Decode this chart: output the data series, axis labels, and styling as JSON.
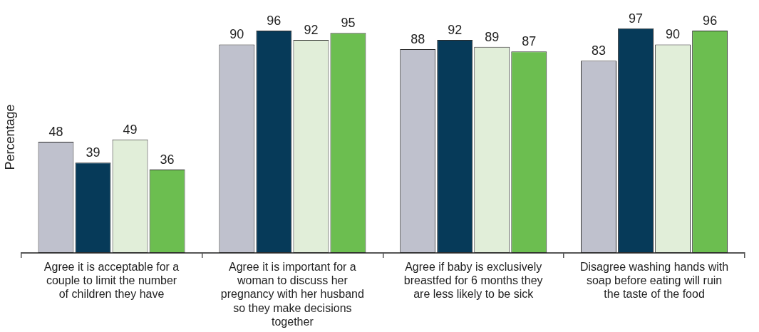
{
  "chart_data": {
    "type": "bar",
    "ylabel": "Percentage",
    "categories": [
      "Agree it is acceptable for a couple to limit the number of children they have",
      "Agree it is important for a woman to discuss her pregnancy with her husband so they make decisions together",
      "Agree if baby is exclusively breastfed for 6 months they are less likely to be sick",
      "Disagree washing hands with soap before eating will ruin the taste of the food"
    ],
    "series": [
      {
        "color": "#bfc1cd",
        "values": [
          48,
          90,
          88,
          83
        ]
      },
      {
        "color": "#063a59",
        "values": [
          39,
          96,
          92,
          97
        ]
      },
      {
        "color": "#e1eed9",
        "values": [
          49,
          92,
          89,
          90
        ]
      },
      {
        "color": "#6cbe50",
        "values": [
          36,
          95,
          87,
          96
        ]
      }
    ],
    "tick_labels": "x",
    "data_labels": true,
    "grid": false,
    "legend": false
  }
}
